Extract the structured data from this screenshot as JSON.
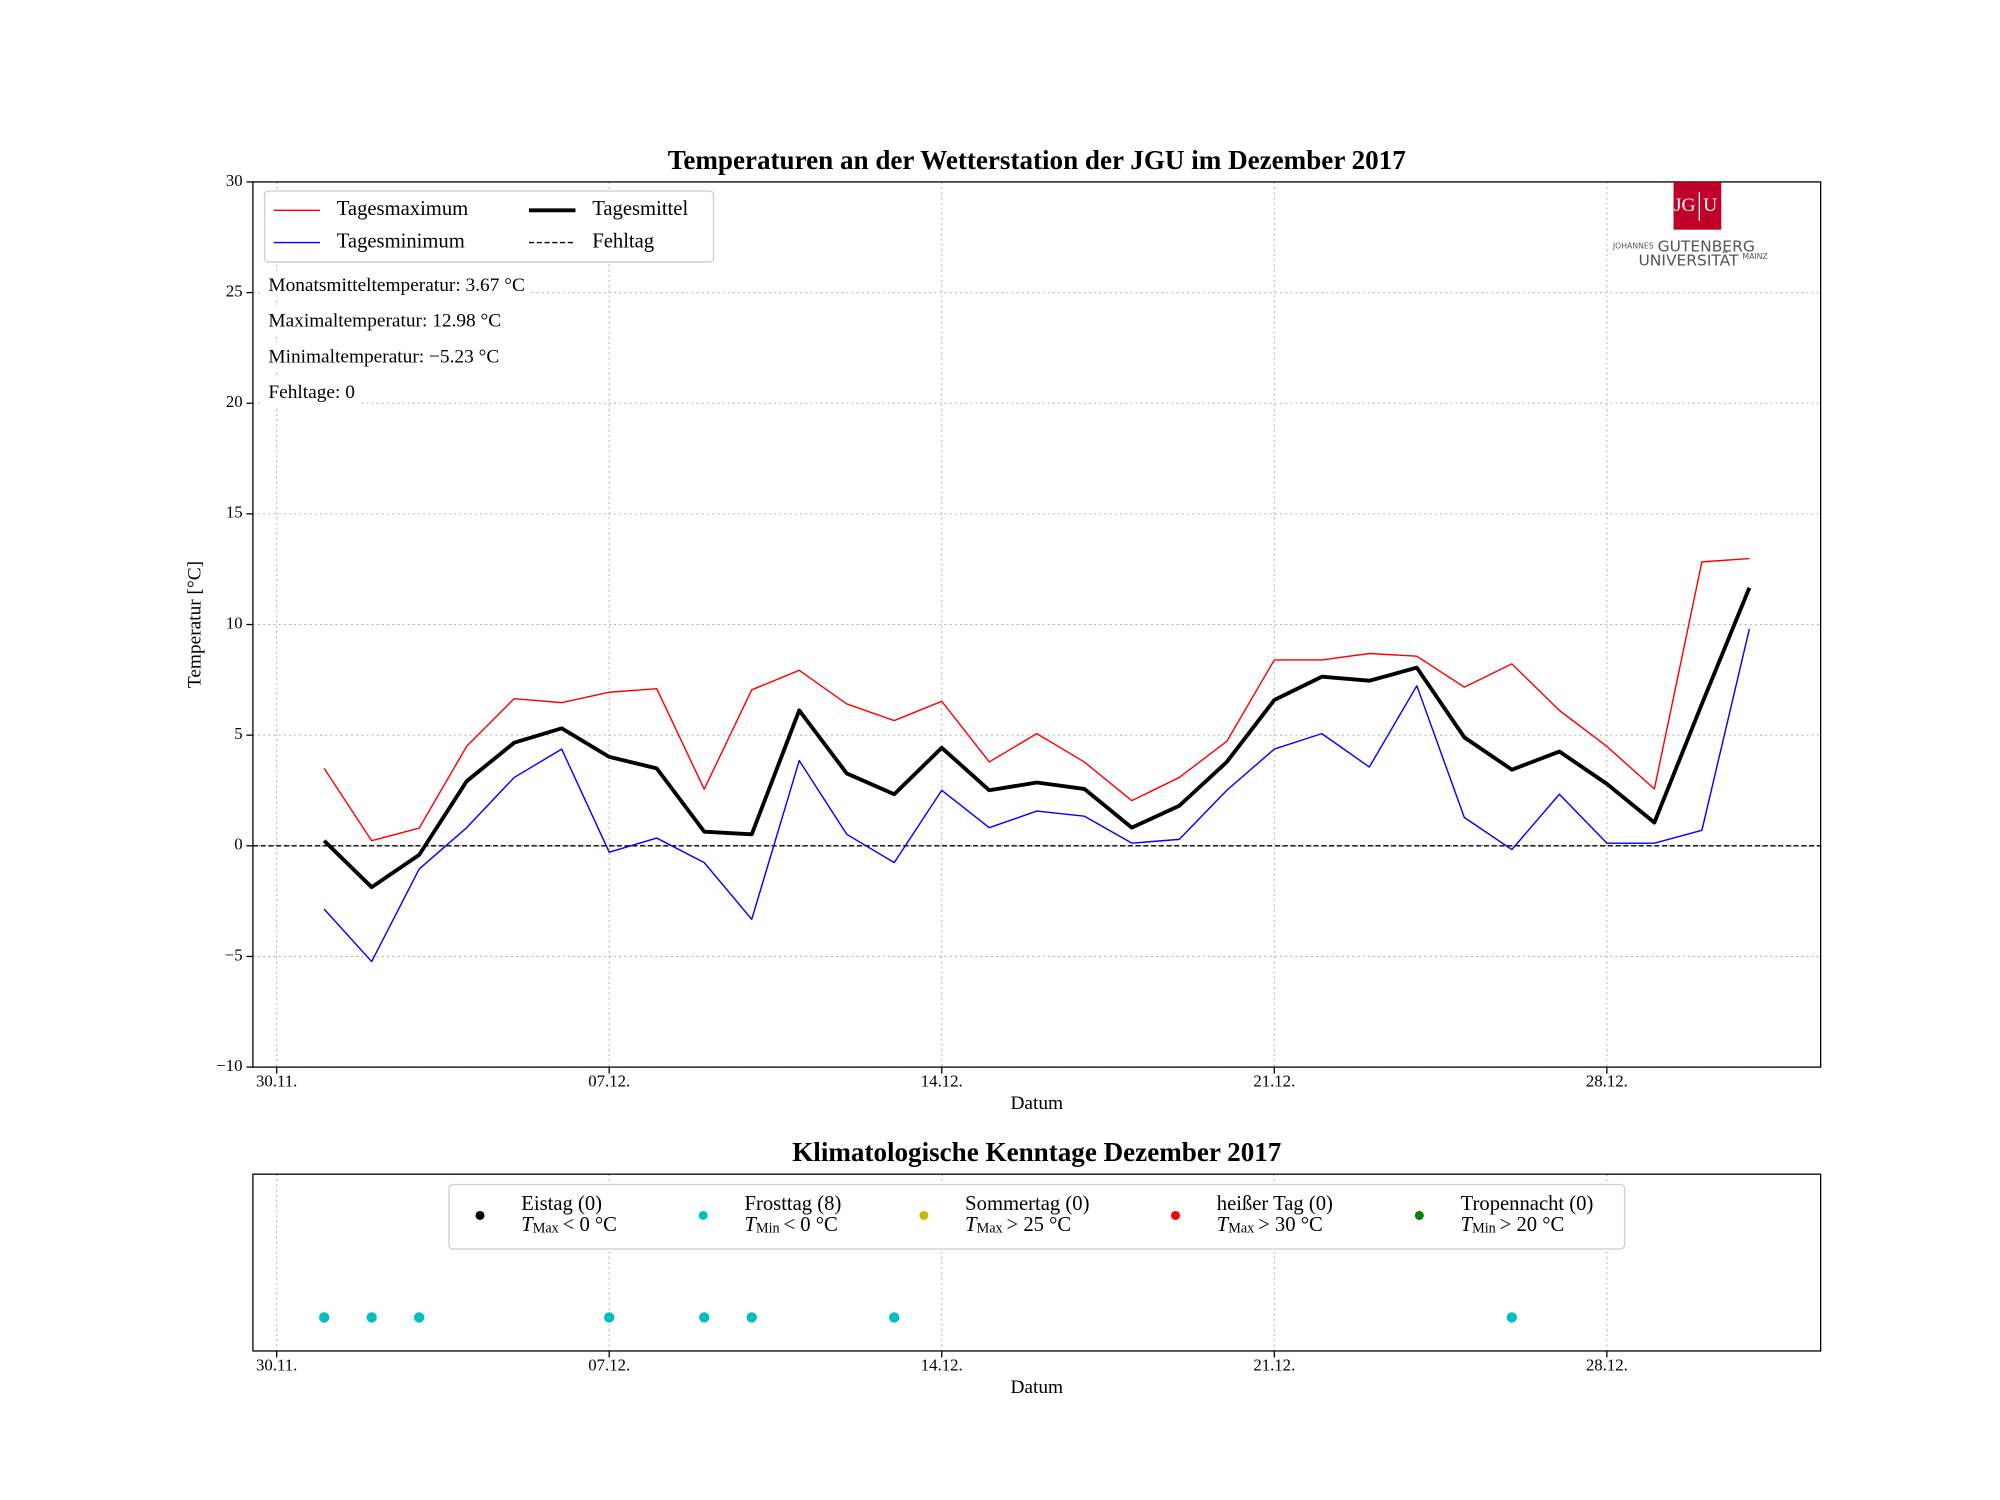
{
  "chart_data": [
    {
      "type": "line",
      "title": "Temperaturen an der Wetterstation der JGU im Dezember 2017",
      "xlabel": "Datum",
      "ylabel": "Temperatur [°C]",
      "x": [
        "01.12.",
        "02.12.",
        "03.12.",
        "04.12.",
        "05.12.",
        "06.12.",
        "07.12.",
        "08.12.",
        "09.12.",
        "10.12.",
        "11.12.",
        "12.12.",
        "13.12.",
        "14.12.",
        "15.12.",
        "16.12.",
        "17.12.",
        "18.12.",
        "19.12.",
        "20.12.",
        "21.12.",
        "22.12.",
        "23.12.",
        "24.12.",
        "25.12.",
        "26.12.",
        "27.12.",
        "28.12.",
        "29.12.",
        "30.12.",
        "31.12."
      ],
      "xticks": [
        "30.11.",
        "07.12.",
        "14.12.",
        "21.12.",
        "28.12."
      ],
      "ylim": [
        -10,
        30
      ],
      "yticks": [
        {
          "value": -10,
          "label": "−10"
        },
        {
          "value": -5,
          "label": "−5"
        },
        0,
        5,
        10,
        15,
        20,
        25,
        30
      ],
      "grid": true,
      "legend": "upper left",
      "series": [
        {
          "name": "Tagesmaximum",
          "color": "#ff0000",
          "values": [
            3.5,
            0.23,
            0.8,
            4.5,
            6.65,
            6.47,
            6.94,
            7.1,
            2.56,
            7.05,
            7.93,
            6.41,
            5.66,
            6.53,
            3.79,
            5.07,
            3.79,
            2.04,
            3.09,
            4.72,
            8.4,
            8.4,
            8.69,
            8.57,
            7.17,
            8.22,
            6.12,
            4.49,
            2.57,
            12.83,
            12.98
          ]
        },
        {
          "name": "Tagesminimum",
          "color": "#0000ff",
          "values": [
            -2.86,
            -5.23,
            -1.05,
            0.82,
            3.09,
            4.37,
            -0.29,
            0.35,
            -0.76,
            -3.32,
            3.85,
            0.52,
            -0.76,
            2.51,
            0.82,
            1.57,
            1.34,
            0.12,
            0.29,
            2.51,
            4.37,
            5.07,
            3.56,
            7.23,
            1.28,
            -0.17,
            2.33,
            0.12,
            0.12,
            0.7,
            9.8
          ]
        },
        {
          "name": "Tagesmittel",
          "color": "#000000",
          "values": [
            0.23,
            -1.87,
            -0.41,
            2.92,
            4.66,
            5.31,
            4.02,
            3.5,
            0.64,
            0.52,
            6.12,
            3.27,
            2.33,
            4.43,
            2.51,
            2.86,
            2.57,
            0.82,
            1.81,
            3.79,
            6.59,
            7.64,
            7.46,
            8.05,
            4.9,
            3.44,
            4.26,
            2.8,
            1.05,
            6.41,
            11.66
          ]
        }
      ],
      "hline": {
        "name": "Fehltag",
        "value": 0,
        "color": "#000000",
        "dashed": true
      },
      "annotations": [
        "Monatsmitteltemperatur: 3.67 °C",
        "Maximaltemperatur: 12.98 °C",
        "Minimaltemperatur: −5.23 °C",
        "Fehltage: 0"
      ],
      "logo": {
        "mark": [
          "JG",
          "U"
        ],
        "line1_small": "JOHANNES",
        "line1": "GUTENBERG",
        "line2": "UNIVERSITÄT",
        "line2_small": "MAINZ",
        "color": "#c1002a"
      }
    },
    {
      "type": "scatter",
      "title": "Klimatologische Kenntage Dezember 2017",
      "xlabel": "Datum",
      "xticks": [
        "30.11.",
        "07.12.",
        "14.12.",
        "21.12.",
        "28.12."
      ],
      "grid": true,
      "legend": "upper center",
      "series": [
        {
          "name": "Eistag (0)",
          "cond": {
            "var": "T",
            "sub": "Max",
            "rel": "< 0 °C"
          },
          "color": "#000000",
          "x": []
        },
        {
          "name": "Frosttag (8)",
          "cond": {
            "var": "T",
            "sub": "Min",
            "rel": "< 0 °C"
          },
          "color": "#00bfbf",
          "x": [
            "01.12.",
            "02.12.",
            "03.12.",
            "07.12.",
            "09.12.",
            "10.12.",
            "13.12.",
            "26.12."
          ]
        },
        {
          "name": "Sommertag (0)",
          "cond": {
            "var": "T",
            "sub": "Max",
            "rel": "> 25 °C"
          },
          "color": "#bfbf00",
          "x": []
        },
        {
          "name": "heißer Tag (0)",
          "cond": {
            "var": "T",
            "sub": "Max",
            "rel": "> 30 °C"
          },
          "color": "#ff0000",
          "x": []
        },
        {
          "name": "Tropennacht (0)",
          "cond": {
            "var": "T",
            "sub": "Min",
            "rel": "> 20 °C"
          },
          "color": "#008000",
          "x": []
        }
      ]
    }
  ]
}
